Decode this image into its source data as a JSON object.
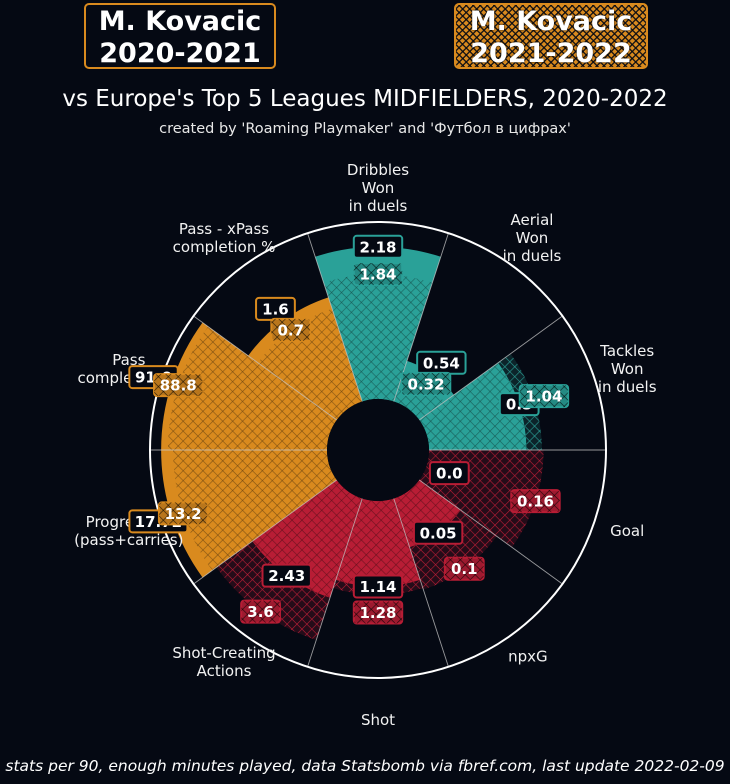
{
  "legend": {
    "season_a": {
      "player": "M. Kovacic",
      "season": "2020-2021",
      "style": "solid"
    },
    "season_b": {
      "player": "M. Kovacic",
      "season": "2021-2022",
      "style": "hatched"
    }
  },
  "title": "vs Europe's Top 5 Leagues MIDFIELDERS, 2020-2022",
  "subtitle": "created by 'Roaming Playmaker' and 'Футбол в цифрах'",
  "footer": "stats per 90, enough minutes played, data Statsbomb via fbref.com, last update 2022-02-09",
  "colors": {
    "background": "#050913",
    "passing": "#d98a1e",
    "defending": "#2aa198",
    "attacking": "#b81d35",
    "ring": "#ffffff"
  },
  "chart_data": {
    "type": "pie",
    "subtype": "polar-area (pizza) comparison",
    "title": "vs Europe's Top 5 Leagues MIDFIELDERS, 2020-2022",
    "direction": "counter-clockwise from east",
    "series": [
      {
        "name": "M. Kovacic 2020-2021",
        "style": "solid"
      },
      {
        "name": "M. Kovacic 2021-2022",
        "style": "hatched"
      }
    ],
    "categories": [
      {
        "label": "Tackles\nWon\nin duels",
        "group": "defending",
        "values": [
          0.5,
          1.04
        ],
        "pct": [
          0.57,
          0.66
        ]
      },
      {
        "label": "Aerial\nWon\nin duels",
        "group": "defending",
        "values": [
          0.54,
          0.32
        ],
        "pct": [
          0.25,
          0.18
        ]
      },
      {
        "label": "Dribbles\nWon\nin duels",
        "group": "defending",
        "values": [
          2.18,
          1.84
        ],
        "pct": [
          0.89,
          0.73
        ]
      },
      {
        "label": "Pass - xPass\ncompletion %",
        "group": "passing",
        "values": [
          1.6,
          0.7
        ],
        "pct": [
          0.64,
          0.57
        ]
      },
      {
        "label": "Pass\ncompletion %",
        "group": "passing",
        "values": [
          91.0,
          88.8
        ],
        "pct": [
          0.97,
          0.93
        ]
      },
      {
        "label": "Progressive\n(pass+carries)",
        "group": "passing",
        "values": [
          17.72,
          13.2
        ],
        "pct": [
          0.97,
          0.9
        ]
      },
      {
        "label": "Shot-Creating\nActions",
        "group": "attacking",
        "values": [
          2.43,
          3.6
        ],
        "pct": [
          0.61,
          0.87
        ]
      },
      {
        "label": "Shot",
        "group": "attacking",
        "values": [
          1.14,
          1.28
        ],
        "pct": [
          0.5,
          0.55
        ]
      },
      {
        "label": "npxG",
        "group": "attacking",
        "values": [
          0.05,
          0.1
        ],
        "pct": [
          0.3,
          0.56
        ]
      },
      {
        "label": "Goal",
        "group": "attacking",
        "values": [
          0.0,
          0.16
        ],
        "pct": [
          0.0,
          0.67
        ]
      }
    ]
  }
}
